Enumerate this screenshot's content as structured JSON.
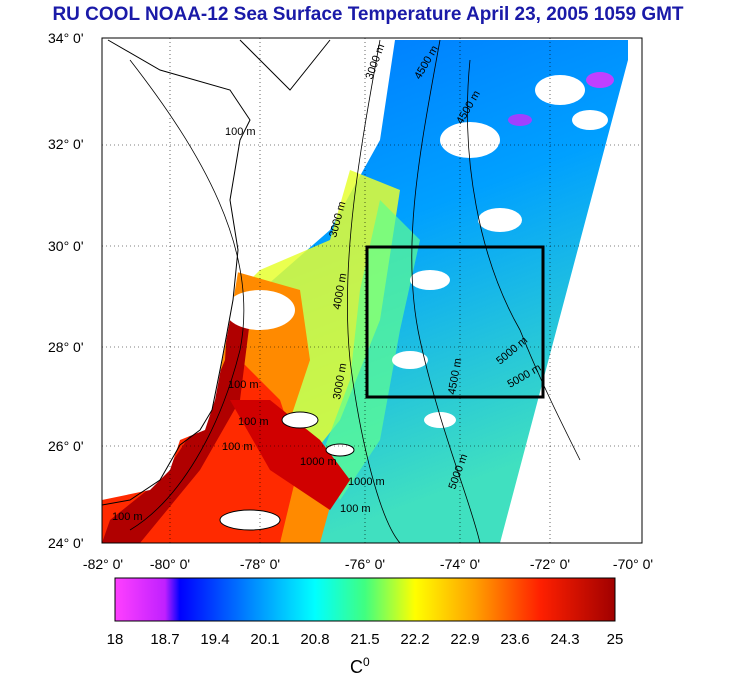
{
  "title": "RU COOL  NOAA-12 Sea Surface Temperature April 23, 2005 1059 GMT",
  "latitude_labels": [
    "34° 0'",
    "32° 0'",
    "30° 0'",
    "28° 0'",
    "26° 0'",
    "24° 0'"
  ],
  "longitude_labels": [
    "-82° 0'",
    "-80° 0'",
    "-78° 0'",
    "-76° 0'",
    "-74° 0'",
    "-72° 0'",
    "-70° 0'"
  ],
  "depth_contours": [
    "100 m",
    "100 m",
    "100 m",
    "100 m",
    "100 m",
    "100 m",
    "1000 m",
    "1000 m",
    "3000 m",
    "3000 m",
    "3000 m",
    "4000 m",
    "4500 m",
    "4500 m",
    "4500 m",
    "5000 m",
    "5000 m",
    "5000 m"
  ],
  "colorbar": {
    "labels": [
      "18",
      "18.7",
      "19.4",
      "20.1",
      "20.8",
      "21.5",
      "22.2",
      "22.9",
      "23.6",
      "24.3",
      "25"
    ],
    "unit": "C",
    "unit_superscript": "0",
    "colors": [
      "#ff40ff",
      "#0000ff",
      "#0090ff",
      "#00ffff",
      "#40ff80",
      "#ffff00",
      "#ffa000",
      "#ff2000",
      "#a00000"
    ]
  },
  "map": {
    "lat_range": [
      24,
      34
    ],
    "lon_range": [
      -82,
      -70
    ],
    "study_box": {
      "lon": [
        -76,
        -72
      ],
      "lat": [
        27,
        30
      ]
    }
  }
}
